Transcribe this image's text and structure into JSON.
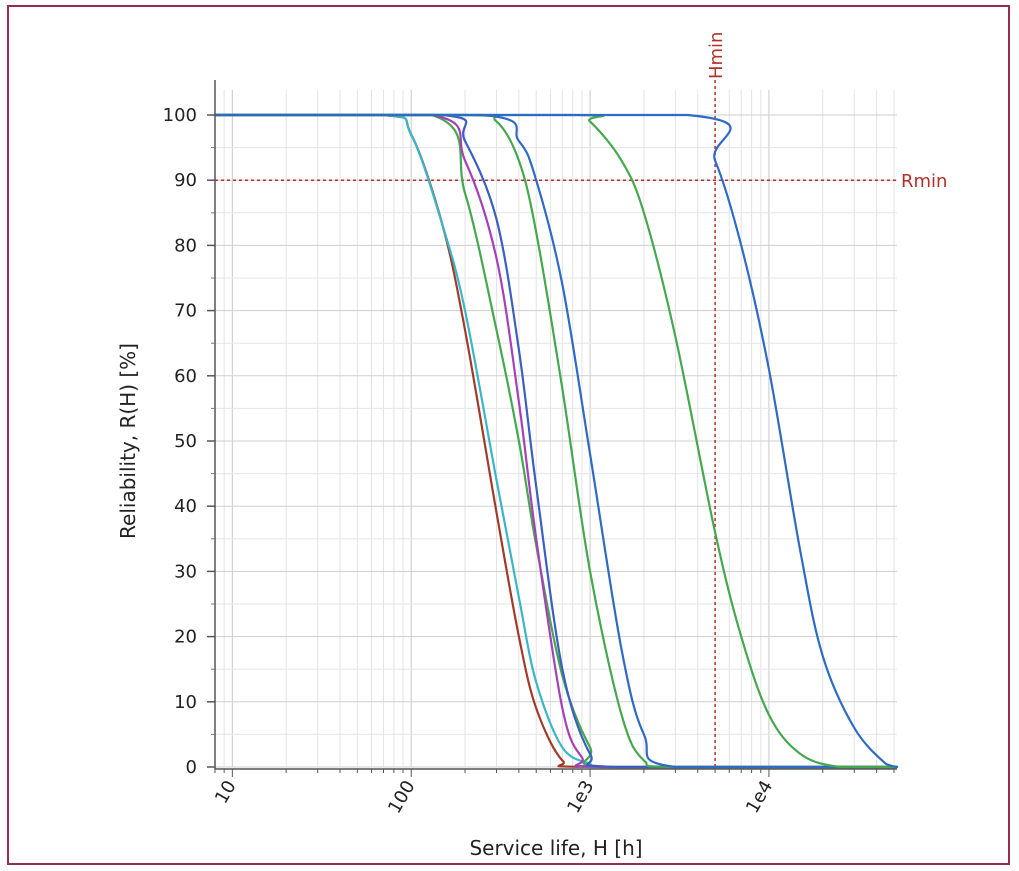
{
  "chart_data": {
    "type": "line",
    "title": "",
    "xlabel": "Service life, H [h]",
    "ylabel": "Reliability, R(H) [%]",
    "x_scale": "log",
    "xlim": [
      8,
      52000
    ],
    "ylim": [
      0,
      100
    ],
    "grid": true,
    "x_ticks": [
      {
        "value": 10,
        "label": "10"
      },
      {
        "value": 100,
        "label": "100"
      },
      {
        "value": 1000,
        "label": "1e3"
      },
      {
        "value": 10000,
        "label": "1e4"
      }
    ],
    "y_ticks": [
      0,
      10,
      20,
      30,
      40,
      50,
      60,
      70,
      80,
      90,
      100
    ],
    "reference_lines": [
      {
        "orientation": "vertical",
        "label": "Hmin",
        "value": 5000,
        "color": "#b0302a"
      },
      {
        "orientation": "horizontal",
        "label": "Rmin",
        "value": 90,
        "color": "#b0302a"
      }
    ],
    "series": [
      {
        "color": "#a23a2a",
        "x": [
          8,
          70,
          100,
          150,
          200,
          300,
          400,
          500,
          700,
          1000,
          52000
        ],
        "values": [
          100,
          100,
          97,
          83,
          67,
          39,
          20,
          9,
          1,
          0,
          0
        ]
      },
      {
        "color": "#3ab6c8",
        "x": [
          8,
          70,
          100,
          150,
          200,
          300,
          400,
          500,
          700,
          1000,
          1200,
          52000
        ],
        "values": [
          100,
          100,
          97,
          83,
          70,
          44,
          26,
          13,
          3,
          0.5,
          0,
          0
        ]
      },
      {
        "color": "#45a84e",
        "x": [
          8,
          130,
          200,
          300,
          400,
          500,
          700,
          1000,
          1300,
          52000
        ],
        "values": [
          100,
          100,
          88,
          67,
          50,
          34,
          14,
          3,
          0,
          0
        ]
      },
      {
        "color": "#a640b8",
        "x": [
          8,
          130,
          200,
          300,
          400,
          500,
          700,
          900,
          1200,
          52000
        ],
        "values": [
          100,
          100,
          93,
          78,
          56,
          35,
          9,
          1.5,
          0,
          0
        ]
      },
      {
        "color": "#3a5fc0",
        "x": [
          8,
          150,
          200,
          300,
          400,
          500,
          700,
          1000,
          1400,
          52000
        ],
        "values": [
          100,
          100,
          96,
          84,
          64,
          43,
          15,
          2,
          0,
          0
        ]
      },
      {
        "color": "#45a84e",
        "x": [
          8,
          200,
          300,
          400,
          500,
          700,
          1000,
          1500,
          2000,
          3000,
          52000
        ],
        "values": [
          100,
          100,
          99,
          93,
          82,
          58,
          30,
          8,
          1,
          0,
          0
        ]
      },
      {
        "color": "#2e6bc4",
        "x": [
          8,
          250,
          400,
          500,
          700,
          1000,
          1500,
          2000,
          3000,
          52000
        ],
        "values": [
          100,
          100,
          96,
          90,
          74,
          48,
          18,
          5,
          0,
          0
        ]
      },
      {
        "color": "#45a84e",
        "x": [
          8,
          800,
          1000,
          1500,
          2000,
          3000,
          5000,
          7000,
          10000,
          15000,
          25000,
          52000
        ],
        "values": [
          100,
          100,
          99,
          93,
          85,
          66,
          36,
          20,
          8,
          2,
          0,
          0
        ]
      },
      {
        "color": "#2e6bc4",
        "x": [
          8,
          3500,
          5000,
          7000,
          10000,
          15000,
          20000,
          30000,
          45000,
          52000
        ],
        "values": [
          100,
          100,
          93,
          80,
          61,
          33,
          17,
          6,
          0.5,
          0
        ]
      }
    ]
  }
}
